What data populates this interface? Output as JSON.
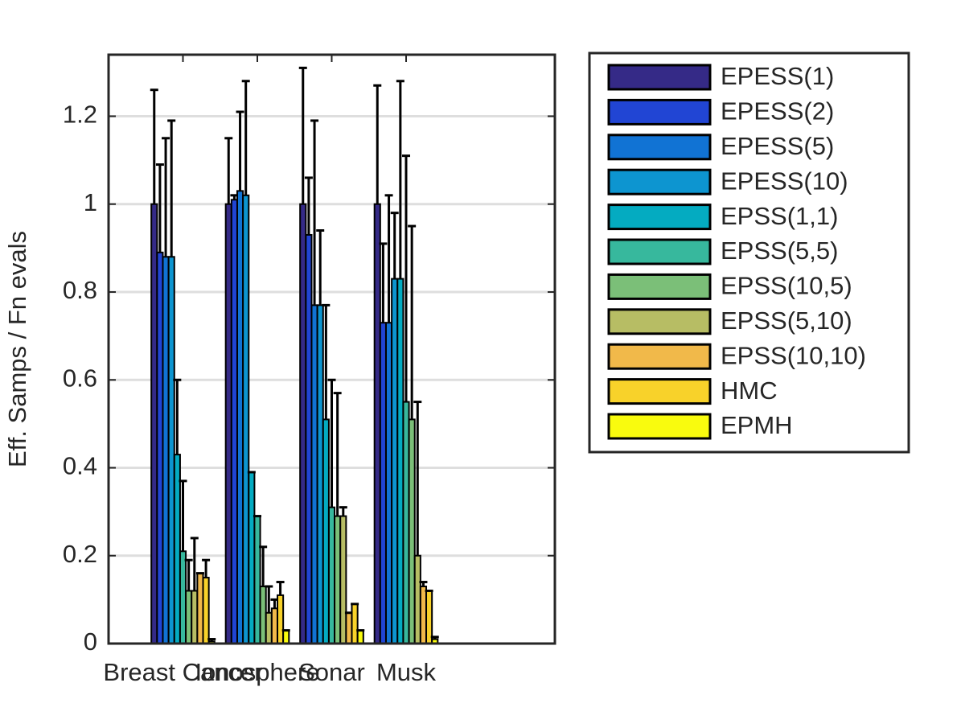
{
  "chart_data": {
    "type": "bar",
    "ylabel": "Eff. Samps / Fn evals",
    "categories": [
      "Breast Cancer",
      "Ionosphere",
      "Sonar",
      "Musk"
    ],
    "series": [
      {
        "name": "EPESS(1)",
        "color": "#352a87",
        "values": [
          1.0,
          1.0,
          1.0,
          1.0
        ],
        "errors": [
          0.26,
          0.15,
          0.31,
          0.27
        ]
      },
      {
        "name": "EPESS(2)",
        "color": "#2145d4",
        "values": [
          0.89,
          1.01,
          0.93,
          0.73
        ],
        "errors": [
          0.2,
          0.01,
          0.13,
          0.18
        ]
      },
      {
        "name": "EPESS(5)",
        "color": "#1173d4",
        "values": [
          0.88,
          1.03,
          0.77,
          0.73
        ],
        "errors": [
          0.27,
          0.18,
          0.42,
          0.29
        ]
      },
      {
        "name": "EPESS(10)",
        "color": "#0d95d0",
        "values": [
          0.88,
          1.02,
          0.77,
          0.83
        ],
        "errors": [
          0.31,
          0.26,
          0.17,
          0.15
        ]
      },
      {
        "name": "EPSS(1,1)",
        "color": "#04abc1",
        "values": [
          0.43,
          0.39,
          0.51,
          0.83
        ],
        "errors": [
          0.17,
          0,
          0.26,
          0.45
        ]
      },
      {
        "name": "EPSS(5,5)",
        "color": "#37b89d",
        "values": [
          0.21,
          0.29,
          0.31,
          0.55
        ],
        "errors": [
          0.16,
          0,
          0.29,
          0.56
        ]
      },
      {
        "name": "EPSS(10,5)",
        "color": "#7bbf78",
        "values": [
          0.12,
          0.13,
          0.29,
          0.51
        ],
        "errors": [
          0.07,
          0.09,
          0.28,
          0.44
        ]
      },
      {
        "name": "EPSS(5,10)",
        "color": "#b7bd64",
        "values": [
          0.12,
          0.07,
          0.29,
          0.2
        ],
        "errors": [
          0.12,
          0.06,
          0.02,
          0.35
        ]
      },
      {
        "name": "EPSS(10,10)",
        "color": "#f1b94a",
        "values": [
          0.16,
          0.08,
          0.07,
          0.13
        ],
        "errors": [
          0,
          0.02,
          0,
          0.01
        ]
      },
      {
        "name": "HMC",
        "color": "#f8d22a",
        "values": [
          0.15,
          0.11,
          0.09,
          0.12
        ],
        "errors": [
          0.04,
          0.03,
          0,
          0
        ]
      },
      {
        "name": "EPMH",
        "color": "#f9fb0e",
        "values": [
          0.005,
          0.03,
          0.03,
          0.01
        ],
        "errors": [
          0.005,
          0,
          0,
          0.005
        ]
      }
    ],
    "xlim": [
      0,
      6
    ],
    "ylim": [
      0,
      1.34
    ],
    "yticks": [
      0,
      0.2,
      0.4,
      0.6,
      0.8,
      1,
      1.2
    ],
    "grid": true,
    "legend": "outside-right"
  }
}
